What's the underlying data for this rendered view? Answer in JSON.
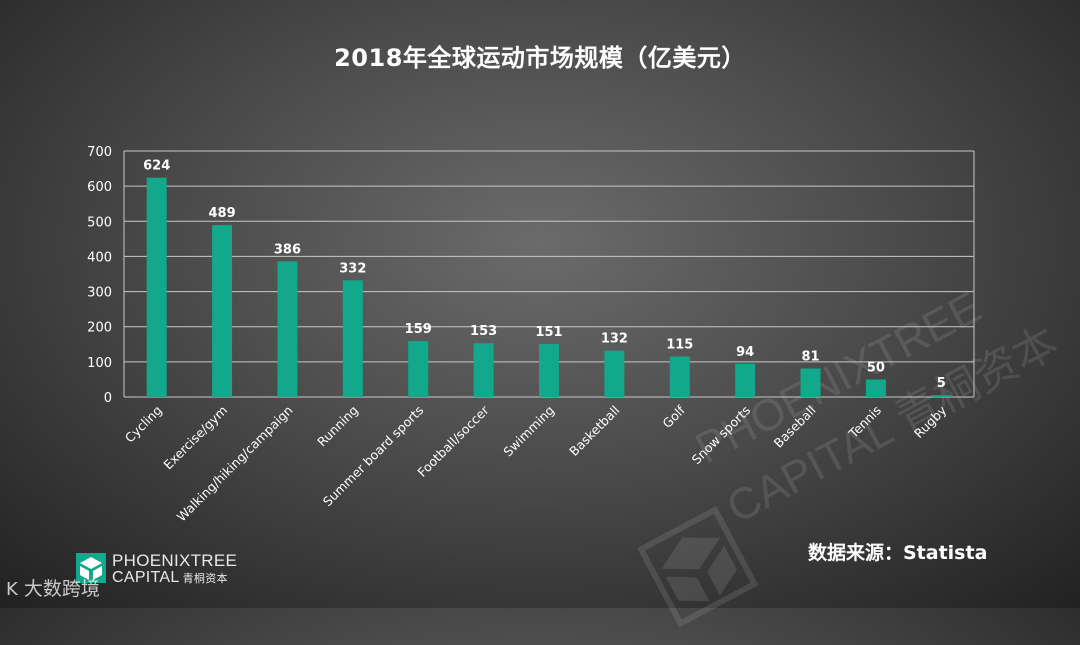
{
  "chart_data": {
    "type": "bar",
    "title": "2018年全球运动市场规模（亿美元）",
    "categories": [
      "Cycling",
      "Exercise/gym",
      "Walking/hiking/campaign",
      "Running",
      "Summer board sports",
      "Football/soccer",
      "Swimming",
      "Basketball",
      "Golf",
      "Snow sports",
      "Baseball",
      "Tennis",
      "Rugby"
    ],
    "values": [
      624,
      489,
      386,
      332,
      159,
      153,
      151,
      132,
      115,
      94,
      81,
      50,
      5
    ],
    "data_labels": [
      "624",
      "489",
      "386",
      "332",
      "159",
      "153",
      "151",
      "132",
      "115",
      "94",
      "81",
      "50",
      "5"
    ],
    "ylim": [
      0,
      700
    ],
    "yticks": [
      0,
      100,
      200,
      300,
      400,
      500,
      600,
      700
    ],
    "xlabel": "",
    "ylabel": "",
    "grid": true,
    "bar_color": "#12a88c"
  },
  "source_text": "数据来源：Statista",
  "logo": {
    "line1": "PHOENIXTREE",
    "line2": "CAPITAL",
    "line2_cn": "青桐资本"
  },
  "watermark": {
    "line1": "PHOENIXTREE",
    "line2": "CAPITAL 青桐资本"
  },
  "brand_watermark": {
    "glyph": "K",
    "text": "大数跨境"
  }
}
